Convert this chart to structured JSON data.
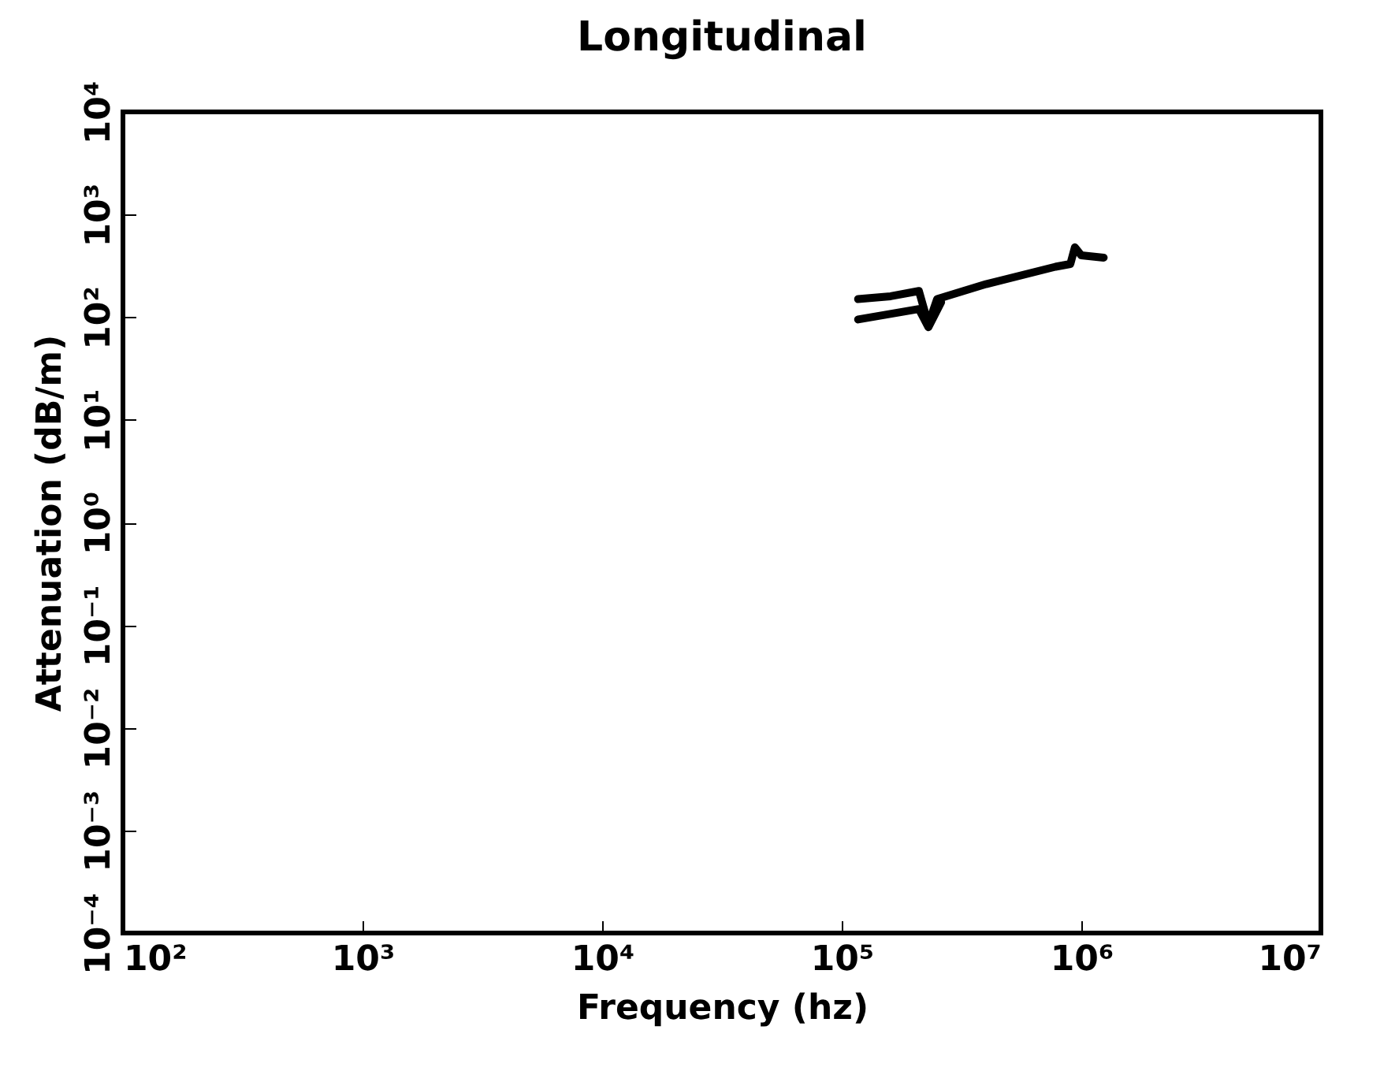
{
  "chart_data": {
    "type": "line",
    "title": "Longitudinal",
    "xlabel": "Frequency (hz)",
    "ylabel": "Attenuation (dB/m)",
    "log": "xy",
    "grid": false,
    "marker": "none",
    "line_style": "solid",
    "xlim": [
      100,
      10000000
    ],
    "ylim": [
      0.0001,
      10000
    ],
    "xticks": [
      {
        "value": 100,
        "label": "10²"
      },
      {
        "value": 1000,
        "label": "10³"
      },
      {
        "value": 10000,
        "label": "10⁴"
      },
      {
        "value": 100000,
        "label": "10⁵"
      },
      {
        "value": 1000000,
        "label": "10⁶"
      },
      {
        "value": 10000000,
        "label": "10⁷"
      }
    ],
    "yticks": [
      {
        "value": 0.0001,
        "label": "10⁻⁴"
      },
      {
        "value": 0.001,
        "label": "10⁻³"
      },
      {
        "value": 0.01,
        "label": "10⁻²"
      },
      {
        "value": 0.1,
        "label": "10⁻¹"
      },
      {
        "value": 1,
        "label": "10⁰"
      },
      {
        "value": 10,
        "label": "10¹"
      },
      {
        "value": 100,
        "label": "10²"
      },
      {
        "value": 1000,
        "label": "10³"
      },
      {
        "value": 10000,
        "label": "10⁴"
      }
    ],
    "series": [
      {
        "color": "#000000",
        "x": [
          117000,
          160000,
          210000,
          230000,
          250000,
          400000,
          780000,
          900000,
          940000,
          1000000,
          1240000
        ],
        "values": [
          150,
          160,
          180,
          85,
          150,
          210,
          310,
          330,
          480,
          400,
          380
        ]
      },
      {
        "color": "#000000",
        "x": [
          117000,
          210000,
          230000,
          260000
        ],
        "values": [
          95,
          120,
          80,
          140
        ]
      }
    ]
  }
}
